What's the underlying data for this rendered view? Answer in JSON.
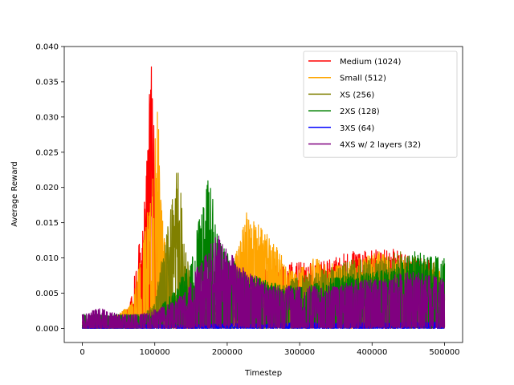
{
  "chart_data": {
    "type": "line",
    "title": "",
    "xlabel": "Timestep",
    "ylabel": "Average Reward",
    "xlim": [
      -25000,
      525000
    ],
    "ylim": [
      -0.002,
      0.04
    ],
    "x_ticks": [
      0,
      100000,
      200000,
      300000,
      400000,
      500000
    ],
    "x_tick_labels": [
      "0",
      "100000",
      "200000",
      "300000",
      "400000",
      "500000"
    ],
    "y_ticks": [
      0.0,
      0.005,
      0.01,
      0.015,
      0.02,
      0.025,
      0.03,
      0.035,
      0.04
    ],
    "y_tick_labels": [
      "0.000",
      "0.005",
      "0.010",
      "0.015",
      "0.020",
      "0.025",
      "0.030",
      "0.035",
      "0.040"
    ],
    "grid": false,
    "legend_position": "upper right",
    "series": [
      {
        "name": "Medium (1024)",
        "color": "#ff0000",
        "x": [
          0,
          25000,
          50000,
          65000,
          75000,
          85000,
          90000,
          93000,
          96000,
          99000,
          102000,
          106000,
          115000,
          130000,
          150000,
          175000,
          200000,
          225000,
          250000,
          280000,
          300000,
          320000,
          345000,
          370000,
          400000,
          420000,
          440000,
          460000,
          480000,
          500000
        ],
        "values": [
          0.001,
          0.001,
          0.002,
          0.003,
          0.01,
          0.017,
          0.026,
          0.036,
          0.038,
          0.03,
          0.022,
          0.014,
          0.007,
          0.003,
          0.002,
          0.003,
          0.004,
          0.007,
          0.009,
          0.009,
          0.01,
          0.009,
          0.01,
          0.011,
          0.011,
          0.012,
          0.011,
          0.01,
          0.01,
          0.006
        ]
      },
      {
        "name": "Small (512)",
        "color": "#ffa500",
        "x": [
          0,
          25000,
          50000,
          70000,
          85000,
          95000,
          100000,
          104000,
          108000,
          112000,
          120000,
          135000,
          160000,
          185000,
          200000,
          215000,
          225000,
          240000,
          260000,
          290000,
          320000,
          350000,
          380000,
          410000,
          440000,
          470000,
          500000
        ],
        "values": [
          0.001,
          0.001,
          0.002,
          0.004,
          0.013,
          0.02,
          0.029,
          0.031,
          0.024,
          0.014,
          0.007,
          0.003,
          0.002,
          0.003,
          0.005,
          0.012,
          0.017,
          0.015,
          0.013,
          0.008,
          0.01,
          0.009,
          0.01,
          0.011,
          0.01,
          0.009,
          0.008
        ]
      },
      {
        "name": "XS (256)",
        "color": "#808000",
        "x": [
          0,
          30000,
          60000,
          85000,
          100000,
          110000,
          120000,
          128000,
          133000,
          137000,
          142000,
          150000,
          165000,
          185000,
          205000,
          230000,
          260000,
          290000,
          320000,
          350000,
          380000,
          410000,
          440000,
          470000,
          500000
        ],
        "values": [
          0.001,
          0.001,
          0.001,
          0.002,
          0.004,
          0.01,
          0.016,
          0.021,
          0.024,
          0.019,
          0.012,
          0.007,
          0.003,
          0.002,
          0.003,
          0.004,
          0.005,
          0.007,
          0.008,
          0.009,
          0.01,
          0.01,
          0.011,
          0.01,
          0.009
        ]
      },
      {
        "name": "2XS (128)",
        "color": "#008000",
        "x": [
          0,
          30000,
          60000,
          100000,
          130000,
          150000,
          160000,
          170000,
          175000,
          182000,
          190000,
          205000,
          225000,
          250000,
          280000,
          310000,
          340000,
          370000,
          400000,
          430000,
          460000,
          500000
        ],
        "values": [
          0.002,
          0.002,
          0.002,
          0.002,
          0.006,
          0.01,
          0.015,
          0.019,
          0.022,
          0.017,
          0.013,
          0.01,
          0.008,
          0.007,
          0.006,
          0.006,
          0.007,
          0.008,
          0.008,
          0.009,
          0.011,
          0.01
        ]
      },
      {
        "name": "3XS (64)",
        "color": "#0000ff",
        "x": [
          0,
          50000,
          100000,
          150000,
          200000,
          250000,
          300000,
          350000,
          400000,
          450000,
          500000
        ],
        "values": [
          0.0005,
          0.0005,
          0.0006,
          0.0006,
          0.0007,
          0.0007,
          0.0008,
          0.0008,
          0.0009,
          0.0009,
          0.001
        ]
      },
      {
        "name": "4XS w/ 2 layers (32)",
        "color": "#800080",
        "x": [
          0,
          25000,
          50000,
          80000,
          110000,
          140000,
          160000,
          175000,
          185000,
          195000,
          210000,
          230000,
          260000,
          290000,
          320000,
          350000,
          380000,
          410000,
          440000,
          470000,
          500000
        ],
        "values": [
          0.002,
          0.003,
          0.002,
          0.002,
          0.003,
          0.005,
          0.009,
          0.011,
          0.015,
          0.012,
          0.01,
          0.008,
          0.006,
          0.006,
          0.006,
          0.006,
          0.007,
          0.007,
          0.008,
          0.008,
          0.007
        ]
      }
    ]
  }
}
